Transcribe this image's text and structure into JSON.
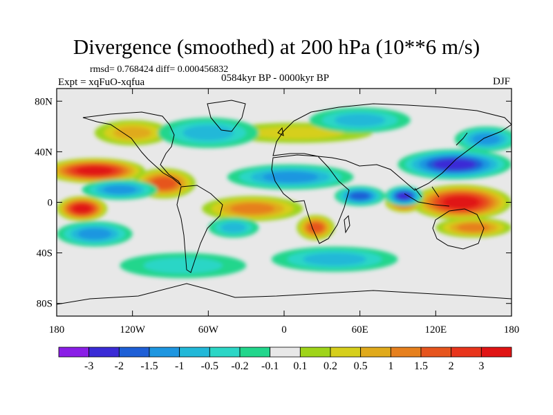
{
  "title": "Divergence (smoothed) at 200 hPa (10**6 m/s)",
  "stats": "rmsd= 0.768424 diff= 0.000456832",
  "experiment": "Expt = xqFuO-xqfua",
  "period": "0584kyr BP - 0000kyr BP",
  "season": "DJF",
  "lat_ticks": [
    "80N",
    "40N",
    "0",
    "40S",
    "80S"
  ],
  "lon_ticks": [
    "180",
    "120W",
    "60W",
    "0",
    "60E",
    "120E",
    "180"
  ],
  "colorbar": {
    "labels": [
      "-3",
      "-2",
      "-1.5",
      "-1",
      "-0.5",
      "-0.2",
      "-0.1",
      "0.1",
      "0.2",
      "0.5",
      "1",
      "1.5",
      "2",
      "3"
    ],
    "colors": [
      "#8a1ee6",
      "#3a2bd6",
      "#1e5fd6",
      "#1e96e0",
      "#22b8d8",
      "#2cd6c6",
      "#22d68c",
      "#e8e8e8",
      "#9fd41a",
      "#d6cf1c",
      "#e0aa1c",
      "#e6801e",
      "#e6551e",
      "#e8351c",
      "#e01414"
    ]
  },
  "chart_data": {
    "type": "heatmap",
    "title": "Divergence (smoothed) at 200 hPa (10**6 m/s)",
    "x_range": [
      -180,
      180
    ],
    "y_range": [
      -90,
      90
    ],
    "blobs": [
      {
        "lon": -150,
        "lat": 25,
        "rx": 40,
        "ry": 10,
        "level": 3
      },
      {
        "lon": -160,
        "lat": -5,
        "rx": 20,
        "ry": 10,
        "level": 3
      },
      {
        "lon": -95,
        "lat": 15,
        "rx": 25,
        "ry": 12,
        "level": 1.5
      },
      {
        "lon": -25,
        "lat": -5,
        "rx": 40,
        "ry": 10,
        "level": 1
      },
      {
        "lon": 25,
        "lat": -20,
        "rx": 15,
        "ry": 10,
        "level": 1.5
      },
      {
        "lon": 140,
        "lat": 0,
        "rx": 40,
        "ry": 14,
        "level": 3
      },
      {
        "lon": 95,
        "lat": 0,
        "rx": 15,
        "ry": 8,
        "level": 2
      },
      {
        "lon": 150,
        "lat": -20,
        "rx": 30,
        "ry": 8,
        "level": 1
      },
      {
        "lon": -120,
        "lat": 55,
        "rx": 30,
        "ry": 10,
        "level": 0.5
      },
      {
        "lon": 10,
        "lat": 55,
        "rx": 60,
        "ry": 8,
        "level": 0.2
      },
      {
        "lon": 135,
        "lat": 30,
        "rx": 45,
        "ry": 12,
        "level": -2
      },
      {
        "lon": 160,
        "lat": 50,
        "rx": 25,
        "ry": 10,
        "level": -1
      },
      {
        "lon": 95,
        "lat": 5,
        "rx": 15,
        "ry": 8,
        "level": -2
      },
      {
        "lon": 5,
        "lat": 20,
        "rx": 50,
        "ry": 10,
        "level": -1
      },
      {
        "lon": -130,
        "lat": 10,
        "rx": 30,
        "ry": 8,
        "level": -1
      },
      {
        "lon": -150,
        "lat": -25,
        "rx": 30,
        "ry": 10,
        "level": -1
      },
      {
        "lon": -60,
        "lat": 55,
        "rx": 40,
        "ry": 12,
        "level": -0.5
      },
      {
        "lon": 60,
        "lat": 65,
        "rx": 40,
        "ry": 10,
        "level": -0.5
      },
      {
        "lon": -80,
        "lat": -50,
        "rx": 50,
        "ry": 10,
        "level": -0.2
      },
      {
        "lon": 40,
        "lat": -45,
        "rx": 50,
        "ry": 10,
        "level": -0.5
      },
      {
        "lon": 60,
        "lat": 5,
        "rx": 20,
        "ry": 8,
        "level": -1.5
      },
      {
        "lon": -40,
        "lat": -20,
        "rx": 20,
        "ry": 8,
        "level": -0.5
      }
    ]
  }
}
